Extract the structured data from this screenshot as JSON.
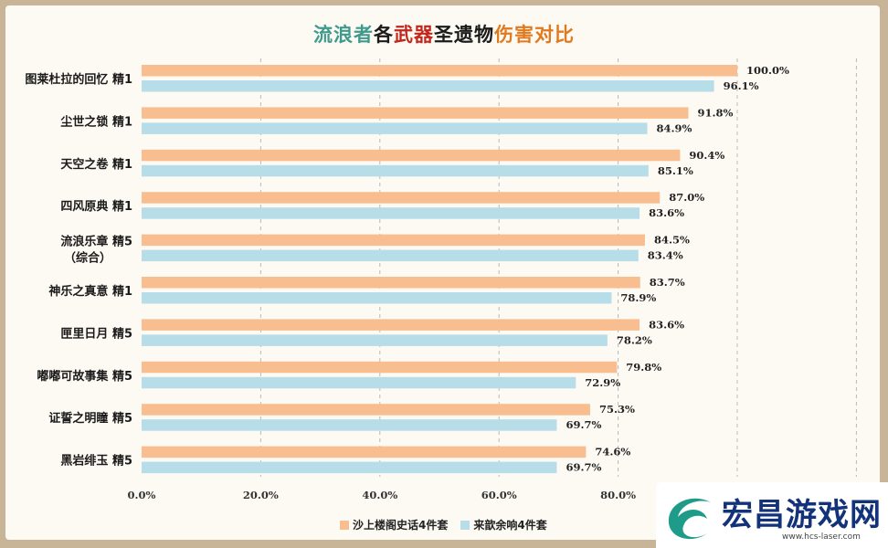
{
  "title_parts": [
    {
      "text": "流浪者",
      "color": "#3f9a8c"
    },
    {
      "text": "各",
      "color": "#1b1b1b"
    },
    {
      "text": "武器",
      "color": "#c0281e"
    },
    {
      "text": "圣遗物",
      "color": "#1b1b1b"
    },
    {
      "text": "伤害对比",
      "color": "#e07a1f"
    }
  ],
  "chart_data": {
    "type": "bar",
    "orientation": "horizontal",
    "title": "流浪者各武器圣遗物伤害对比",
    "categories": [
      [
        "图莱杜拉的回忆 精1"
      ],
      [
        "尘世之锁 精1"
      ],
      [
        "天空之卷 精1"
      ],
      [
        "四风原典 精1"
      ],
      [
        "流浪乐章 精5",
        "（综合）"
      ],
      [
        "神乐之真意 精1"
      ],
      [
        "匣里日月 精5"
      ],
      [
        "嘟嘟可故事集 精5"
      ],
      [
        "证誓之明瞳 精5"
      ],
      [
        "黑岩绯玉 精5"
      ]
    ],
    "series": [
      {
        "name": "沙上楼阁史话4件套",
        "color": "#f9be8f",
        "values": [
          100.0,
          91.8,
          90.4,
          87.0,
          84.5,
          83.7,
          83.6,
          79.8,
          75.3,
          74.6
        ],
        "labels": [
          "100.0%",
          "91.8%",
          "90.4%",
          "87.0%",
          "84.5%",
          "83.7%",
          "83.6%",
          "79.8%",
          "75.3%",
          "74.6%"
        ]
      },
      {
        "name": "来歆余响4件套",
        "color": "#b6dde8",
        "values": [
          96.1,
          84.9,
          85.1,
          83.6,
          83.4,
          78.9,
          78.2,
          72.9,
          69.7,
          69.7
        ],
        "labels": [
          "96.1%",
          "84.9%",
          "85.1%",
          "83.6%",
          "83.4%",
          "78.9%",
          "78.2%",
          "72.9%",
          "69.7%",
          "69.7%"
        ]
      }
    ],
    "xlim": [
      0,
      120
    ],
    "xticks": [
      0,
      20,
      40,
      60,
      80
    ],
    "xtick_labels": [
      "0.0%",
      "20.0%",
      "40.0%",
      "60.0%",
      "80.0%"
    ],
    "grid_values": [
      20,
      40,
      60,
      80,
      100,
      120
    ],
    "grid": true,
    "legend_position": "bottom"
  },
  "watermark": {
    "text": "宏昌游戏网",
    "url": "www.hcs-laser.com",
    "colors": [
      "#1f9b8a",
      "#12327a"
    ]
  }
}
